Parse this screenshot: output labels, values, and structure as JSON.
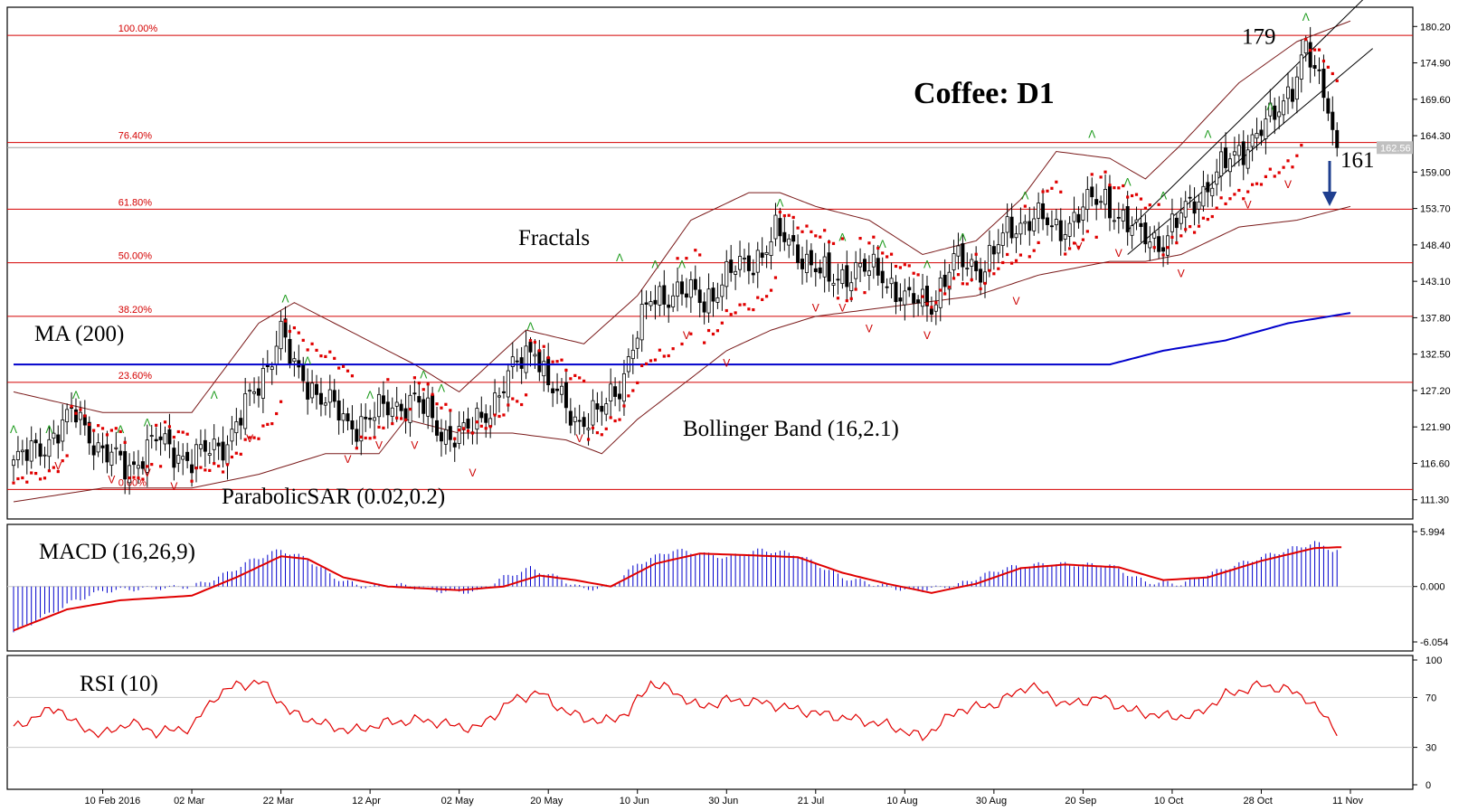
{
  "chart_data": [
    {
      "type": "candlestick",
      "title": "Coffee: D1",
      "price_axis": {
        "range": [
          108.5,
          183.0
        ],
        "ticks": [
          180.2,
          174.9,
          169.6,
          164.3,
          159.0,
          153.7,
          148.4,
          143.1,
          137.8,
          132.5,
          127.2,
          121.9,
          116.6,
          111.3
        ],
        "tick_labels": [
          "180.20",
          "174.90",
          "169.60",
          "164.30",
          "159.00",
          "153.70",
          "148.40",
          "143.10",
          "137.80",
          "132.50",
          "127.20",
          "121.90",
          "116.60",
          "111.30"
        ],
        "current_price": 162.56,
        "current_price_label": "162.56"
      },
      "x_axis": {
        "labels": [
          "10 Feb 2016",
          "02 Mar",
          "22 Mar",
          "12 Apr",
          "02 May",
          "20 May",
          "10 Jun",
          "30 Jun",
          "21 Jul",
          "10 Aug",
          "30 Aug",
          "20 Sep",
          "10 Oct",
          "28 Oct",
          "11 Nov"
        ],
        "label_bar_index": [
          20,
          40,
          60,
          80,
          100,
          120,
          140,
          160,
          180,
          200,
          220,
          240,
          260,
          280,
          300
        ]
      },
      "fibonacci_levels": [
        {
          "label": "100.00%",
          "price": 178.9
        },
        {
          "label": "76.40%",
          "price": 163.3
        },
        {
          "label": "61.80%",
          "price": 153.6
        },
        {
          "label": "50.00%",
          "price": 145.8
        },
        {
          "label": "38.20%",
          "price": 138.0
        },
        {
          "label": "23.60%",
          "price": 128.4
        },
        {
          "label": "0.00%",
          "price": 112.8
        }
      ],
      "close_anchors": [
        [
          0,
          116.5
        ],
        [
          8,
          120
        ],
        [
          14,
          124
        ],
        [
          20,
          118
        ],
        [
          26,
          116
        ],
        [
          32,
          120
        ],
        [
          40,
          117
        ],
        [
          48,
          120
        ],
        [
          55,
          128
        ],
        [
          60,
          136
        ],
        [
          63,
          130
        ],
        [
          70,
          126
        ],
        [
          75,
          122
        ],
        [
          82,
          124
        ],
        [
          90,
          126
        ],
        [
          96,
          121
        ],
        [
          102,
          121
        ],
        [
          106,
          124
        ],
        [
          112,
          130
        ],
        [
          117,
          134
        ],
        [
          120,
          128
        ],
        [
          126,
          123
        ],
        [
          132,
          124
        ],
        [
          136,
          128
        ],
        [
          140,
          136
        ],
        [
          143,
          140
        ],
        [
          149,
          142
        ],
        [
          155,
          140
        ],
        [
          160,
          144
        ],
        [
          166,
          146
        ],
        [
          171,
          150
        ],
        [
          177,
          147
        ],
        [
          183,
          143
        ],
        [
          189,
          145
        ],
        [
          195,
          144
        ],
        [
          201,
          140
        ],
        [
          206,
          140
        ],
        [
          211,
          146
        ],
        [
          217,
          145
        ],
        [
          223,
          150
        ],
        [
          229,
          153
        ],
        [
          234,
          150
        ],
        [
          240,
          154
        ],
        [
          245,
          155
        ],
        [
          252,
          150
        ],
        [
          258,
          149
        ],
        [
          265,
          155
        ],
        [
          272,
          160
        ],
        [
          278,
          164
        ],
        [
          283,
          167
        ],
        [
          287,
          172
        ],
        [
          290,
          177
        ],
        [
          292,
          173
        ],
        [
          295,
          169
        ],
        [
          297,
          162.6
        ]
      ],
      "ma200": {
        "name": "MA (200)",
        "points": [
          [
            0,
            131
          ],
          [
            200,
            131
          ],
          [
            246,
            131
          ],
          [
            258,
            133
          ],
          [
            272,
            134.5
          ],
          [
            286,
            137
          ],
          [
            300,
            138.5
          ]
        ]
      },
      "bollinger": {
        "name": "Bollinger Band (16,2.1)",
        "upper": [
          [
            0,
            127
          ],
          [
            20,
            124
          ],
          [
            40,
            124
          ],
          [
            55,
            137
          ],
          [
            63,
            140
          ],
          [
            75,
            136
          ],
          [
            90,
            131
          ],
          [
            100,
            127
          ],
          [
            115,
            136
          ],
          [
            128,
            134
          ],
          [
            140,
            141
          ],
          [
            152,
            152
          ],
          [
            165,
            156
          ],
          [
            172,
            156
          ],
          [
            180,
            154
          ],
          [
            192,
            152
          ],
          [
            204,
            147
          ],
          [
            216,
            149
          ],
          [
            226,
            155
          ],
          [
            234,
            162
          ],
          [
            246,
            161
          ],
          [
            254,
            158
          ],
          [
            262,
            163
          ],
          [
            275,
            172
          ],
          [
            288,
            178
          ],
          [
            300,
            181
          ]
        ],
        "lower": [
          [
            0,
            111
          ],
          [
            20,
            113
          ],
          [
            40,
            113
          ],
          [
            55,
            115
          ],
          [
            70,
            118
          ],
          [
            82,
            118
          ],
          [
            88,
            123
          ],
          [
            100,
            121
          ],
          [
            112,
            121
          ],
          [
            124,
            120
          ],
          [
            132,
            118
          ],
          [
            140,
            123
          ],
          [
            150,
            128
          ],
          [
            160,
            133
          ],
          [
            170,
            136
          ],
          [
            180,
            138
          ],
          [
            192,
            139
          ],
          [
            204,
            140
          ],
          [
            216,
            141
          ],
          [
            230,
            144
          ],
          [
            246,
            146
          ],
          [
            254,
            146
          ],
          [
            262,
            147
          ],
          [
            275,
            151
          ],
          [
            288,
            152
          ],
          [
            300,
            154
          ]
        ]
      },
      "parabolic_sar": {
        "name": "ParabolicSAR (0.02,0.2)",
        "params_label": "(0.02,0.2)"
      },
      "fractals": {
        "name": "Fractals",
        "up": [
          [
            0,
            121
          ],
          [
            8,
            121
          ],
          [
            14,
            126
          ],
          [
            24,
            121
          ],
          [
            30,
            122
          ],
          [
            45,
            126
          ],
          [
            61,
            140
          ],
          [
            66,
            131
          ],
          [
            80,
            126
          ],
          [
            92,
            129
          ],
          [
            96,
            127
          ],
          [
            116,
            136
          ],
          [
            136,
            146
          ],
          [
            144,
            145
          ],
          [
            150,
            145
          ],
          [
            172,
            154
          ],
          [
            186,
            149
          ],
          [
            195,
            148
          ],
          [
            205,
            145
          ],
          [
            213,
            149
          ],
          [
            227,
            155
          ],
          [
            242,
            164
          ],
          [
            250,
            157
          ],
          [
            258,
            155
          ],
          [
            268,
            164
          ],
          [
            282,
            168
          ],
          [
            290,
            181
          ]
        ],
        "down": [
          [
            10,
            117
          ],
          [
            22,
            115
          ],
          [
            30,
            116
          ],
          [
            36,
            114
          ],
          [
            53,
            121
          ],
          [
            75,
            118
          ],
          [
            82,
            120
          ],
          [
            90,
            120
          ],
          [
            103,
            116
          ],
          [
            127,
            121
          ],
          [
            151,
            136
          ],
          [
            160,
            132
          ],
          [
            180,
            140
          ],
          [
            186,
            140
          ],
          [
            192,
            137
          ],
          [
            205,
            136
          ],
          [
            225,
            141
          ],
          [
            239,
            149
          ],
          [
            248,
            148
          ],
          [
            262,
            145
          ],
          [
            277,
            155
          ],
          [
            286,
            158
          ]
        ]
      },
      "annotations": [
        {
          "text": "179",
          "price": 179
        },
        {
          "text": "161",
          "price": 161
        }
      ]
    },
    {
      "type": "bar+line",
      "name": "MACD (16,26,9)",
      "ylim": [
        -6.054,
        5.994
      ],
      "tick_labels": [
        "5.994",
        "0.000",
        "-6.054"
      ],
      "histogram_anchors": [
        [
          0,
          -5
        ],
        [
          8,
          -3
        ],
        [
          14,
          -1.5
        ],
        [
          20,
          -0.5
        ],
        [
          30,
          -0.2
        ],
        [
          40,
          0
        ],
        [
          46,
          1
        ],
        [
          54,
          3
        ],
        [
          60,
          4
        ],
        [
          66,
          3
        ],
        [
          72,
          1
        ],
        [
          78,
          0
        ],
        [
          86,
          0.2
        ],
        [
          96,
          -0.5
        ],
        [
          104,
          -0.6
        ],
        [
          110,
          1
        ],
        [
          116,
          2
        ],
        [
          122,
          1
        ],
        [
          128,
          -0.3
        ],
        [
          134,
          0
        ],
        [
          140,
          2.5
        ],
        [
          148,
          4
        ],
        [
          160,
          3.2
        ],
        [
          168,
          4
        ],
        [
          176,
          3.5
        ],
        [
          186,
          1
        ],
        [
          196,
          0
        ],
        [
          202,
          -0.5
        ],
        [
          212,
          0.2
        ],
        [
          222,
          2
        ],
        [
          232,
          2.5
        ],
        [
          246,
          2.3
        ],
        [
          254,
          0.5
        ],
        [
          262,
          0.3
        ],
        [
          272,
          2
        ],
        [
          282,
          3.5
        ],
        [
          292,
          4.8
        ],
        [
          296,
          4
        ]
      ],
      "signal_anchors": [
        [
          0,
          -4.8
        ],
        [
          12,
          -2.5
        ],
        [
          24,
          -1.5
        ],
        [
          40,
          -1
        ],
        [
          50,
          1
        ],
        [
          60,
          3.3
        ],
        [
          66,
          3
        ],
        [
          74,
          1
        ],
        [
          84,
          0
        ],
        [
          100,
          -0.4
        ],
        [
          110,
          0
        ],
        [
          118,
          1.2
        ],
        [
          126,
          0.7
        ],
        [
          134,
          0
        ],
        [
          144,
          2.5
        ],
        [
          154,
          3.6
        ],
        [
          166,
          3.4
        ],
        [
          176,
          3.2
        ],
        [
          186,
          1.5
        ],
        [
          196,
          0.3
        ],
        [
          206,
          -0.7
        ],
        [
          216,
          0.3
        ],
        [
          226,
          2
        ],
        [
          236,
          2.4
        ],
        [
          248,
          2.1
        ],
        [
          258,
          0.7
        ],
        [
          268,
          1
        ],
        [
          280,
          2.8
        ],
        [
          292,
          4.2
        ],
        [
          298,
          4.3
        ]
      ]
    },
    {
      "type": "line",
      "name": "RSI (10)",
      "ylim": [
        0,
        100
      ],
      "tick_labels": [
        "100",
        "70",
        "30",
        "0"
      ],
      "anchors": [
        [
          0,
          45
        ],
        [
          5,
          55
        ],
        [
          10,
          62
        ],
        [
          14,
          48
        ],
        [
          20,
          40
        ],
        [
          26,
          50
        ],
        [
          32,
          42
        ],
        [
          40,
          46
        ],
        [
          45,
          70
        ],
        [
          50,
          80
        ],
        [
          56,
          82
        ],
        [
          62,
          58
        ],
        [
          70,
          48
        ],
        [
          76,
          43
        ],
        [
          84,
          50
        ],
        [
          92,
          52
        ],
        [
          98,
          48
        ],
        [
          104,
          45
        ],
        [
          112,
          68
        ],
        [
          118,
          74
        ],
        [
          124,
          58
        ],
        [
          132,
          50
        ],
        [
          138,
          58
        ],
        [
          143,
          82
        ],
        [
          148,
          75
        ],
        [
          154,
          62
        ],
        [
          160,
          68
        ],
        [
          168,
          66
        ],
        [
          176,
          60
        ],
        [
          186,
          54
        ],
        [
          196,
          48
        ],
        [
          204,
          38
        ],
        [
          212,
          60
        ],
        [
          220,
          64
        ],
        [
          228,
          80
        ],
        [
          236,
          64
        ],
        [
          244,
          70
        ],
        [
          250,
          60
        ],
        [
          258,
          55
        ],
        [
          265,
          55
        ],
        [
          272,
          72
        ],
        [
          280,
          80
        ],
        [
          286,
          76
        ],
        [
          290,
          70
        ],
        [
          294,
          55
        ],
        [
          297,
          44
        ]
      ]
    }
  ],
  "toolbar": {}
}
